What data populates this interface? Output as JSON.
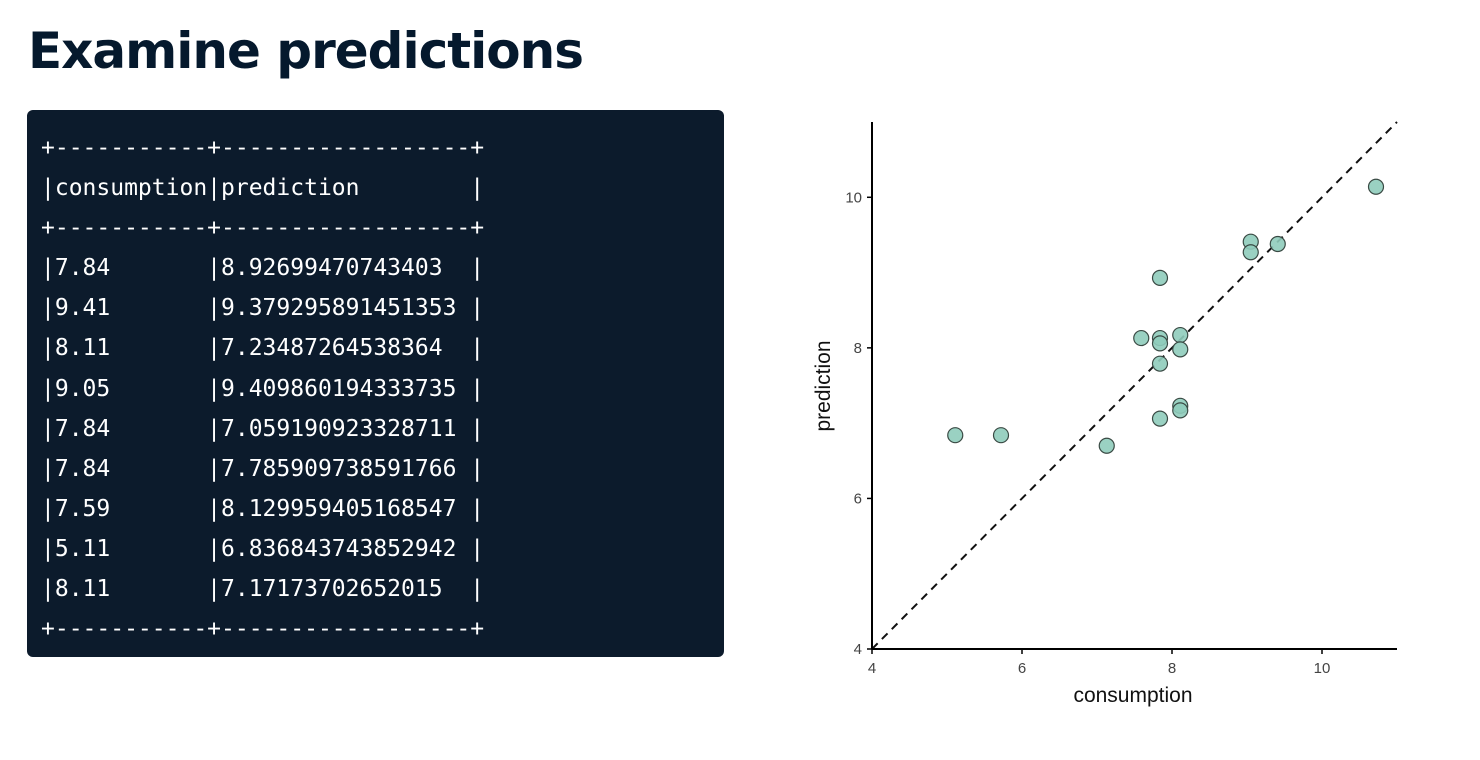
{
  "title": "Examine predictions",
  "console": {
    "lines": [
      "+-----------+------------------+",
      "|consumption|prediction        |",
      "+-----------+------------------+",
      "|7.84       |8.92699470743403  |",
      "|9.41       |9.379295891451353 |",
      "|8.11       |7.23487264538364  |",
      "|9.05       |9.409860194333735 |",
      "|7.84       |7.059190923328711 |",
      "|7.84       |7.785909738591766 |",
      "|7.59       |8.129959405168547 |",
      "|5.11       |6.836843743852942 |",
      "|8.11       |7.17173702652015  |",
      "+-----------+------------------+"
    ]
  },
  "chart_data": {
    "type": "scatter",
    "xlabel": "consumption",
    "ylabel": "prediction",
    "xlim": [
      4,
      11
    ],
    "ylim": [
      4,
      11
    ],
    "xticks": [
      4,
      6,
      8,
      10
    ],
    "yticks": [
      4,
      6,
      8,
      10
    ],
    "reference_line": "y = x (dashed)",
    "grid": false,
    "point_color": "#8fccbb",
    "points": [
      {
        "x": 5.11,
        "y": 6.84
      },
      {
        "x": 5.72,
        "y": 6.84
      },
      {
        "x": 7.13,
        "y": 6.7
      },
      {
        "x": 7.59,
        "y": 8.13
      },
      {
        "x": 7.84,
        "y": 8.93
      },
      {
        "x": 7.84,
        "y": 8.13
      },
      {
        "x": 7.84,
        "y": 8.06
      },
      {
        "x": 7.84,
        "y": 7.79
      },
      {
        "x": 7.84,
        "y": 7.06
      },
      {
        "x": 8.11,
        "y": 8.17
      },
      {
        "x": 8.11,
        "y": 7.98
      },
      {
        "x": 8.11,
        "y": 7.23
      },
      {
        "x": 8.11,
        "y": 7.17
      },
      {
        "x": 9.05,
        "y": 9.41
      },
      {
        "x": 9.05,
        "y": 9.27
      },
      {
        "x": 9.41,
        "y": 9.38
      },
      {
        "x": 10.72,
        "y": 10.14
      }
    ]
  }
}
